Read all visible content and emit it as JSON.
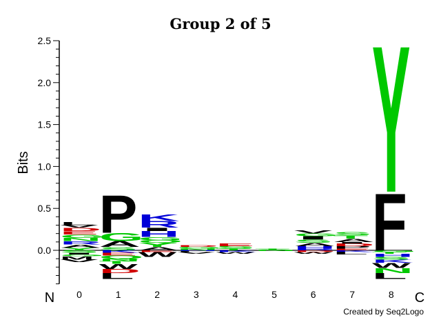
{
  "chart_data": {
    "type": "sequence_logo",
    "title": "Group 2 of 5",
    "ylabel": "Bits",
    "ylim": [
      -0.4,
      2.5
    ],
    "yticks": [
      "0.0",
      "0.5",
      "1.0",
      "1.5",
      "2.0",
      "2.5"
    ],
    "positions": [
      "0",
      "1",
      "2",
      "3",
      "4",
      "5",
      "6",
      "7",
      "8"
    ],
    "n_label": "N",
    "c_label": "C",
    "credit": "Created by Seq2Logo",
    "colors": {
      "green": "#00c800",
      "blue": "#0000d8",
      "red": "#d00000",
      "black": "#000000"
    },
    "stacks": [
      {
        "position": "0",
        "positive": [
          {
            "aa": "Y",
            "height": 0.03,
            "color": "green"
          },
          {
            "aa": "A",
            "height": 0.04,
            "color": "black"
          },
          {
            "aa": "R",
            "height": 0.04,
            "color": "blue"
          },
          {
            "aa": "N",
            "height": 0.04,
            "color": "green"
          },
          {
            "aa": "G",
            "height": 0.04,
            "color": "green"
          },
          {
            "aa": "E",
            "height": 0.04,
            "color": "red"
          },
          {
            "aa": "D",
            "height": 0.04,
            "color": "red"
          },
          {
            "aa": "V",
            "height": 0.03,
            "color": "black"
          },
          {
            "aa": "L",
            "height": 0.04,
            "color": "black"
          }
        ],
        "negative": [
          {
            "aa": "S",
            "height": 0.03,
            "color": "green"
          },
          {
            "aa": "I",
            "height": 0.02,
            "color": "black"
          },
          {
            "aa": "G",
            "height": 0.02,
            "color": "green"
          },
          {
            "aa": "M",
            "height": 0.04,
            "color": "black"
          },
          {
            "aa": "V",
            "height": 0.03,
            "color": "black"
          }
        ]
      },
      {
        "position": "1",
        "positive": [
          {
            "aa": "S",
            "height": 0.04,
            "color": "green"
          },
          {
            "aa": "A",
            "height": 0.07,
            "color": "black"
          },
          {
            "aa": "G",
            "height": 0.1,
            "color": "green"
          },
          {
            "aa": "P",
            "height": 0.46,
            "color": "black"
          }
        ],
        "negative": [
          {
            "aa": "K",
            "height": 0.03,
            "color": "blue"
          },
          {
            "aa": "E",
            "height": 0.03,
            "color": "red"
          },
          {
            "aa": "Q",
            "height": 0.04,
            "color": "green"
          },
          {
            "aa": "N",
            "height": 0.03,
            "color": "green"
          },
          {
            "aa": "T",
            "height": 0.03,
            "color": "green"
          },
          {
            "aa": "W",
            "height": 0.06,
            "color": "black"
          },
          {
            "aa": "D",
            "height": 0.05,
            "color": "red"
          },
          {
            "aa": "L",
            "height": 0.07,
            "color": "black"
          }
        ]
      },
      {
        "position": "2",
        "positive": [
          {
            "aa": "A",
            "height": 0.04,
            "color": "black"
          },
          {
            "aa": "Y",
            "height": 0.05,
            "color": "green"
          },
          {
            "aa": "Q",
            "height": 0.03,
            "color": "green"
          },
          {
            "aa": "G",
            "height": 0.04,
            "color": "green"
          },
          {
            "aa": "H",
            "height": 0.07,
            "color": "blue"
          },
          {
            "aa": "I",
            "height": 0.04,
            "color": "black"
          },
          {
            "aa": "R",
            "height": 0.08,
            "color": "blue"
          },
          {
            "aa": "K",
            "height": 0.08,
            "color": "blue"
          }
        ],
        "negative": [
          {
            "aa": "E",
            "height": 0.02,
            "color": "red"
          },
          {
            "aa": "W",
            "height": 0.06,
            "color": "black"
          }
        ]
      },
      {
        "position": "3",
        "positive": [
          {
            "aa": "N",
            "height": 0.02,
            "color": "green"
          },
          {
            "aa": "G",
            "height": 0.02,
            "color": "green"
          },
          {
            "aa": "D",
            "height": 0.02,
            "color": "red"
          }
        ],
        "negative": [
          {
            "aa": "H",
            "height": 0.01,
            "color": "blue"
          },
          {
            "aa": "L",
            "height": 0.01,
            "color": "black"
          },
          {
            "aa": "V",
            "height": 0.02,
            "color": "black"
          }
        ]
      },
      {
        "position": "4",
        "positive": [
          {
            "aa": "T",
            "height": 0.02,
            "color": "green"
          },
          {
            "aa": "S",
            "height": 0.03,
            "color": "green"
          },
          {
            "aa": "E",
            "height": 0.03,
            "color": "red"
          }
        ],
        "negative": [
          {
            "aa": "K",
            "height": 0.02,
            "color": "blue"
          },
          {
            "aa": "W",
            "height": 0.02,
            "color": "black"
          }
        ]
      },
      {
        "position": "5",
        "positive": [
          {
            "aa": "S",
            "height": 0.01,
            "color": "green"
          },
          {
            "aa": "T",
            "height": 0.01,
            "color": "green"
          }
        ],
        "negative": [
          {
            "aa": "N",
            "height": 0.01,
            "color": "green"
          }
        ]
      },
      {
        "position": "6",
        "positive": [
          {
            "aa": "R",
            "height": 0.02,
            "color": "blue"
          },
          {
            "aa": "H",
            "height": 0.03,
            "color": "blue"
          },
          {
            "aa": "A",
            "height": 0.04,
            "color": "black"
          },
          {
            "aa": "S",
            "height": 0.04,
            "color": "green"
          },
          {
            "aa": "I",
            "height": 0.04,
            "color": "black"
          },
          {
            "aa": "G",
            "height": 0.03,
            "color": "green"
          },
          {
            "aa": "V",
            "height": 0.04,
            "color": "black"
          }
        ],
        "negative": [
          {
            "aa": "D",
            "height": 0.02,
            "color": "red"
          },
          {
            "aa": "W",
            "height": 0.02,
            "color": "black"
          }
        ]
      },
      {
        "position": "7",
        "positive": [
          {
            "aa": "E",
            "height": 0.02,
            "color": "red"
          },
          {
            "aa": "P",
            "height": 0.03,
            "color": "black"
          },
          {
            "aa": "D",
            "height": 0.03,
            "color": "red"
          },
          {
            "aa": "I",
            "height": 0.02,
            "color": "black"
          },
          {
            "aa": "A",
            "height": 0.04,
            "color": "black"
          },
          {
            "aa": "T",
            "height": 0.04,
            "color": "green"
          },
          {
            "aa": "S",
            "height": 0.04,
            "color": "green"
          }
        ],
        "negative": [
          {
            "aa": "K",
            "height": 0.02,
            "color": "blue"
          },
          {
            "aa": "L",
            "height": 0.03,
            "color": "black"
          }
        ]
      },
      {
        "position": "8",
        "positive": [
          {
            "aa": "F",
            "height": 0.7,
            "color": "black"
          },
          {
            "aa": "Y",
            "height": 1.8,
            "color": "green"
          }
        ],
        "negative": [
          {
            "aa": "G",
            "height": 0.02,
            "color": "green"
          },
          {
            "aa": "T",
            "height": 0.02,
            "color": "green"
          },
          {
            "aa": "H",
            "height": 0.04,
            "color": "blue"
          },
          {
            "aa": "S",
            "height": 0.03,
            "color": "green"
          },
          {
            "aa": "K",
            "height": 0.04,
            "color": "blue"
          },
          {
            "aa": "W",
            "height": 0.06,
            "color": "black"
          },
          {
            "aa": "N",
            "height": 0.06,
            "color": "green"
          },
          {
            "aa": "L",
            "height": 0.07,
            "color": "black"
          }
        ]
      }
    ]
  }
}
